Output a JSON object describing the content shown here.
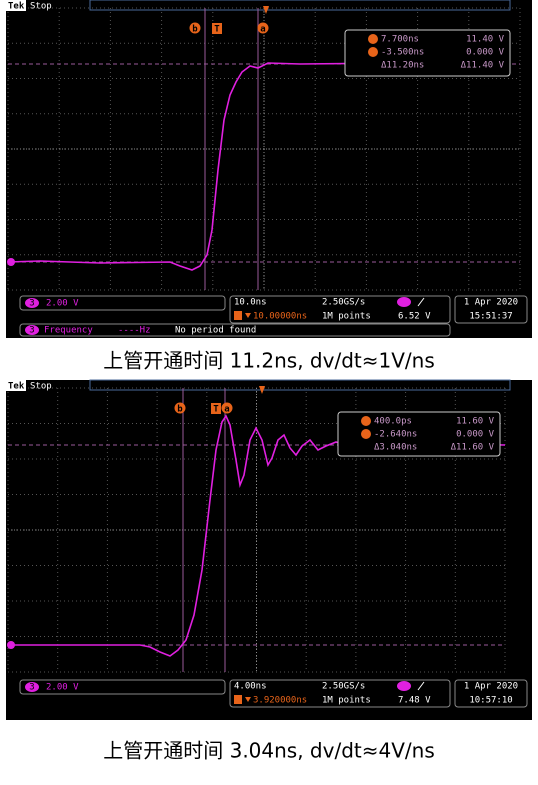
{
  "scopes": [
    {
      "brand": "Tek",
      "status": "Stop",
      "markers": [
        "b",
        "T",
        "a"
      ],
      "readout": {
        "a_time": "7.700ns",
        "a_volt": "11.40 V",
        "b_time": "-3.500ns",
        "b_volt": "0.000 V",
        "delta_time": "Δ11.20ns",
        "delta_volt": "Δ11.40 V"
      },
      "channel": "3",
      "scale": "2.00 V",
      "timebase": "10.0ns",
      "sample_rate": "2.50GS/s",
      "delay": "10.00000ns",
      "record": "1M points",
      "trigger_level": "6.52 V",
      "date": "1 Apr 2020",
      "time": "15:51:37",
      "measurement": {
        "name": "Frequency",
        "value": "----Hz",
        "status": "No period found"
      }
    },
    {
      "brand": "Tek",
      "status": "Stop",
      "markers": [
        "b",
        "T",
        "a"
      ],
      "readout": {
        "a_time": "400.0ps",
        "a_volt": "11.60 V",
        "b_time": "-2.640ns",
        "b_volt": "0.000 V",
        "delta_time": "Δ3.040ns",
        "delta_volt": "Δ11.60 V"
      },
      "channel": "3",
      "scale": "2.00 V",
      "timebase": "4.00ns",
      "sample_rate": "2.50GS/s",
      "delay": "3.920000ns",
      "record": "1M points",
      "trigger_level": "7.48 V",
      "date": "1 Apr 2020",
      "time": "10:57:10"
    }
  ],
  "captions": [
    "上管开通时间  11.2ns, dv/dt≈1V/ns",
    "上管开通时间  3.04ns, dv/dt≈4V/ns"
  ]
}
